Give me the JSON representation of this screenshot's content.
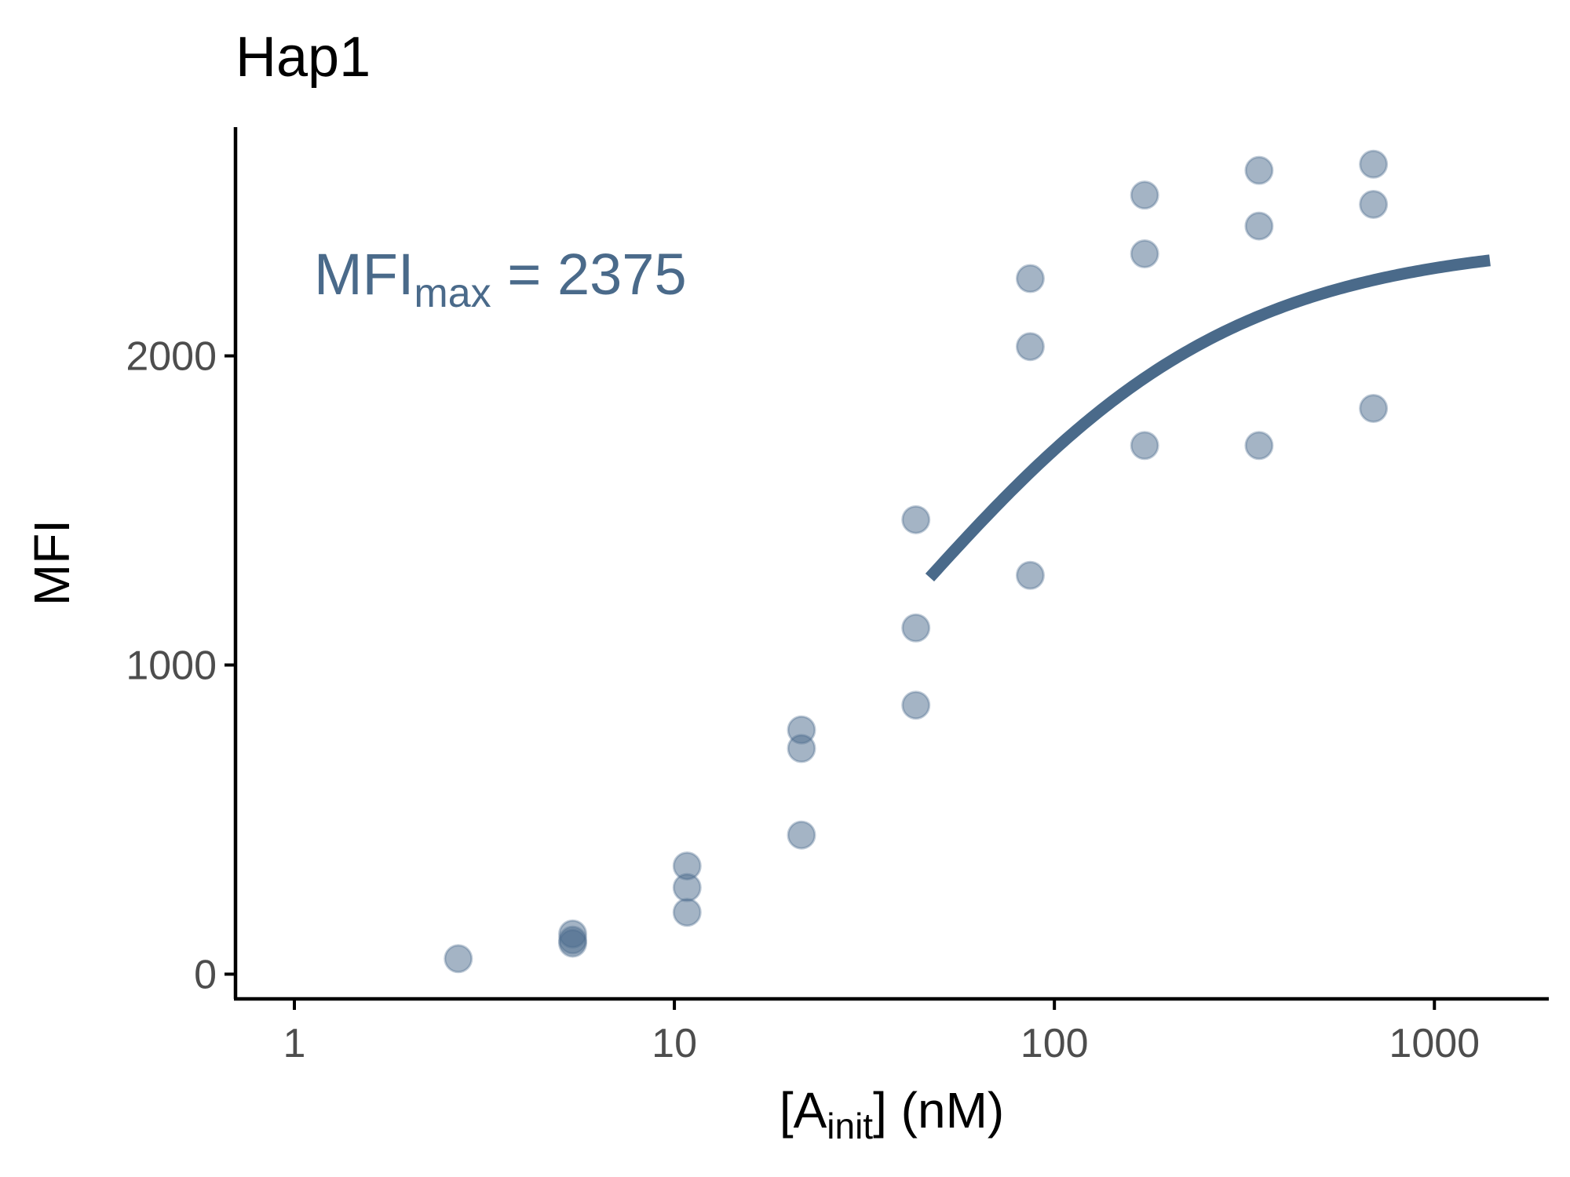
{
  "chart_data": {
    "type": "scatter",
    "title": "Hap1",
    "xlabel": "[A_init] (nM)",
    "xlabel_parts": {
      "main": "[A",
      "sub": "init",
      "tail": "] (nM)"
    },
    "ylabel": "MFI",
    "x_scale": "log10",
    "xlim": [
      0.7,
      2000
    ],
    "ylim": [
      -80,
      2740
    ],
    "x_ticks": [
      1,
      10,
      100,
      1000
    ],
    "x_tick_labels": [
      "1",
      "10",
      "100",
      "1000"
    ],
    "y_ticks": [
      0,
      1000,
      2000
    ],
    "y_tick_labels": [
      "0",
      "1000",
      "2000"
    ],
    "grid": false,
    "colors": {
      "points": "#4a6a8c",
      "fit_line": "#4a6a8a",
      "annotation": "#4a6a8a"
    },
    "points": [
      {
        "x": 2.7,
        "y": 50
      },
      {
        "x": 5.4,
        "y": 130
      },
      {
        "x": 5.4,
        "y": 110
      },
      {
        "x": 5.4,
        "y": 100
      },
      {
        "x": 10.8,
        "y": 350
      },
      {
        "x": 10.8,
        "y": 280
      },
      {
        "x": 10.8,
        "y": 200
      },
      {
        "x": 21.6,
        "y": 790
      },
      {
        "x": 21.6,
        "y": 730
      },
      {
        "x": 21.6,
        "y": 450
      },
      {
        "x": 43.2,
        "y": 1470
      },
      {
        "x": 43.2,
        "y": 1120
      },
      {
        "x": 43.2,
        "y": 870
      },
      {
        "x": 86.4,
        "y": 2250
      },
      {
        "x": 86.4,
        "y": 2030
      },
      {
        "x": 86.4,
        "y": 1290
      },
      {
        "x": 172.8,
        "y": 2520
      },
      {
        "x": 172.8,
        "y": 2330
      },
      {
        "x": 172.8,
        "y": 1710
      },
      {
        "x": 345.6,
        "y": 2600
      },
      {
        "x": 345.6,
        "y": 2420
      },
      {
        "x": 345.6,
        "y": 1710
      },
      {
        "x": 691.2,
        "y": 2620
      },
      {
        "x": 691.2,
        "y": 2490
      },
      {
        "x": 691.2,
        "y": 1830
      }
    ],
    "fit": {
      "model": "MFI = MFImax * x / (Kd + x)",
      "MFImax": 2375,
      "Kd": 40,
      "x_range": [
        47,
        1400
      ]
    },
    "annotation": {
      "main": "MFI",
      "sub": "max",
      "tail": " = 2375"
    }
  }
}
